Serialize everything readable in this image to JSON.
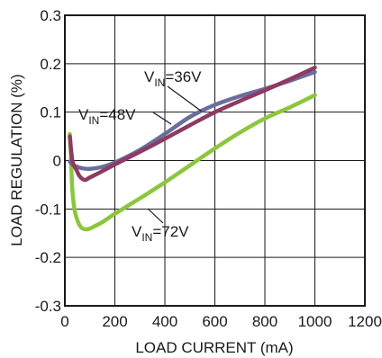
{
  "chart_data": {
    "type": "line",
    "title": "",
    "xlabel": "LOAD CURRENT (mA)",
    "ylabel": "LOAD REGULATION (%)",
    "xlim": [
      0,
      1200
    ],
    "ylim": [
      -0.3,
      0.3
    ],
    "x_ticks": [
      0,
      200,
      400,
      600,
      800,
      1000,
      1200
    ],
    "y_ticks": [
      -0.3,
      -0.2,
      -0.1,
      0,
      0.1,
      0.2,
      0.3
    ],
    "x_tick_labels": [
      "0",
      "200",
      "400",
      "600",
      "800",
      "1000",
      "1200"
    ],
    "y_tick_labels": [
      "-0.3",
      "-0.2",
      "-0.1",
      "0",
      "0.1",
      "0.2",
      "0.3"
    ],
    "grid": true,
    "series": [
      {
        "name": "VIN=36V",
        "label_main": "V",
        "label_sub": "IN",
        "label_rest": "=36V",
        "color": "#6a6e9c",
        "x": [
          20,
          30,
          45,
          70,
          100,
          150,
          200,
          300,
          400,
          500,
          600,
          700,
          800,
          900,
          1000
        ],
        "y": [
          -0.002,
          -0.008,
          -0.012,
          -0.016,
          -0.017,
          -0.013,
          -0.004,
          0.022,
          0.055,
          0.09,
          0.115,
          0.133,
          0.148,
          0.165,
          0.183
        ]
      },
      {
        "name": "VIN=48V",
        "label_main": "V",
        "label_sub": "IN",
        "label_rest": "=48V",
        "color": "#8e3a62",
        "x": [
          20,
          30,
          45,
          60,
          80,
          100,
          150,
          200,
          300,
          400,
          500,
          600,
          700,
          800,
          900,
          1000
        ],
        "y": [
          0.05,
          0.0,
          -0.018,
          -0.033,
          -0.04,
          -0.035,
          -0.022,
          -0.008,
          0.018,
          0.045,
          0.073,
          0.1,
          0.123,
          0.145,
          0.168,
          0.192
        ]
      },
      {
        "name": "VIN=72V",
        "label_main": "V",
        "label_sub": "IN",
        "label_rest": "=72V",
        "color": "#8cc63e",
        "x": [
          20,
          25,
          30,
          40,
          55,
          70,
          90,
          110,
          150,
          200,
          300,
          400,
          500,
          600,
          700,
          800,
          900,
          1000
        ],
        "y": [
          0.055,
          0.0,
          -0.06,
          -0.105,
          -0.13,
          -0.14,
          -0.142,
          -0.138,
          -0.127,
          -0.11,
          -0.078,
          -0.045,
          -0.01,
          0.025,
          0.058,
          0.087,
          0.11,
          0.135
        ]
      }
    ]
  }
}
